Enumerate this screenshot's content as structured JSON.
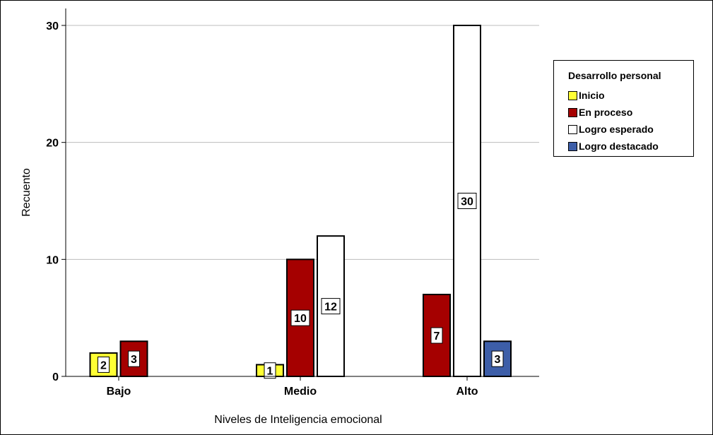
{
  "chart_data": {
    "type": "bar",
    "xlabel": "Niveles de Inteligencia emocional",
    "ylabel": "Recuento",
    "categories": [
      "Bajo",
      "Medio",
      "Alto"
    ],
    "ylim": [
      0,
      30
    ],
    "yticks": [
      0,
      10,
      20,
      30
    ],
    "grid": true,
    "legend_position": "right",
    "legend_title": "Desarrollo personal",
    "series": [
      {
        "name": "Inicio",
        "color": "#ffff33",
        "values": [
          2,
          1,
          null
        ]
      },
      {
        "name": "En proceso",
        "color": "#a50000",
        "values": [
          3,
          10,
          7
        ]
      },
      {
        "name": "Logro esperado",
        "color": "#ffffff",
        "values": [
          null,
          12,
          30
        ]
      },
      {
        "name": "Logro destacado",
        "color": "#3d5ea8",
        "values": [
          null,
          null,
          3
        ]
      }
    ]
  }
}
